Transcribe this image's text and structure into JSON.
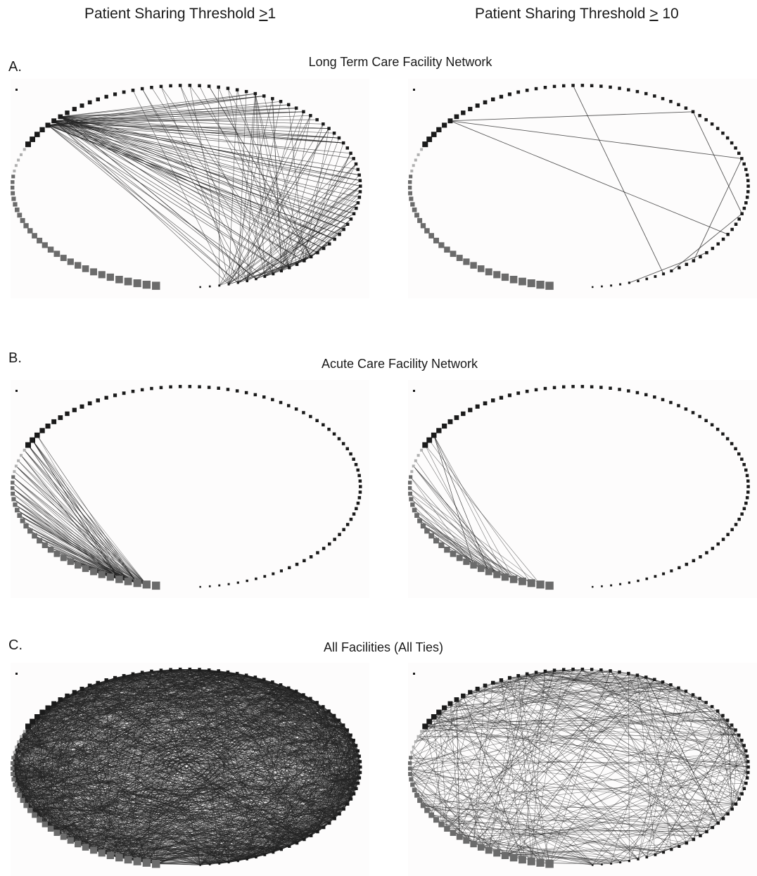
{
  "columns": {
    "left": {
      "prefix": "Patient Sharing Threshold ",
      "op": ">",
      "value": "1"
    },
    "right": {
      "prefix": "Patient Sharing Threshold ",
      "op": ">",
      "value": " 10"
    }
  },
  "sections": [
    {
      "letter": "A.",
      "title": "Long Term Care Facility Network",
      "left": {
        "edge_pattern": "ltc_dense",
        "edge_count": 180
      },
      "right": {
        "edge_pattern": "ltc_sparse",
        "edge_count": 8
      }
    },
    {
      "letter": "B.",
      "title": "Acute Care Facility Network",
      "left": {
        "edge_pattern": "acute_dense",
        "edge_count": 160
      },
      "right": {
        "edge_pattern": "acute_sparse",
        "edge_count": 45
      }
    },
    {
      "letter": "C.",
      "title": "All Facilities (All Ties)",
      "left": {
        "edge_pattern": "all_dense",
        "edge_count": 2600
      },
      "right": {
        "edge_pattern": "all_sparse",
        "edge_count": 420
      }
    }
  ],
  "network": {
    "node_count": 110,
    "isolate_count": 1,
    "colors": {
      "dark_node": "#1a1a1a",
      "gray_node": "#6b6b6b",
      "light_node": "#b0b0b0",
      "edge": "#222222",
      "panel_bg": "#fdfcfc"
    }
  }
}
